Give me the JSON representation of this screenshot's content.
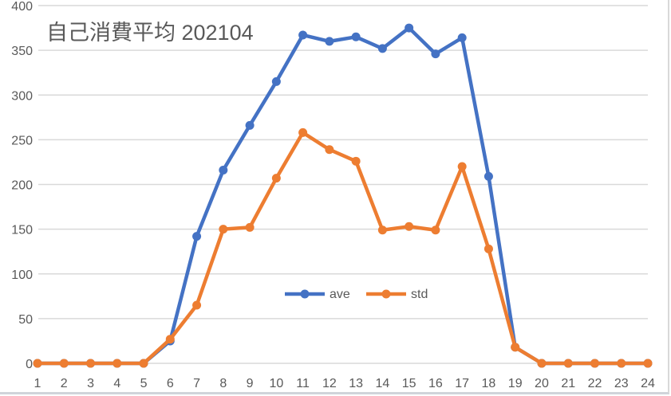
{
  "chart_data": {
    "type": "line",
    "title": "自己消費平均  202104",
    "xlabel": "",
    "ylabel": "",
    "x": [
      1,
      2,
      3,
      4,
      5,
      6,
      7,
      8,
      9,
      10,
      11,
      12,
      13,
      14,
      15,
      16,
      17,
      18,
      19,
      20,
      21,
      22,
      23,
      24
    ],
    "categories": [
      "1",
      "2",
      "3",
      "4",
      "5",
      "6",
      "7",
      "8",
      "9",
      "10",
      "11",
      "12",
      "13",
      "14",
      "15",
      "16",
      "17",
      "18",
      "19",
      "20",
      "21",
      "22",
      "23",
      "24"
    ],
    "series": [
      {
        "name": "ave",
        "color": "#4472c4",
        "values": [
          0,
          0,
          0,
          0,
          0,
          25,
          142,
          216,
          266,
          315,
          367,
          360,
          365,
          352,
          375,
          346,
          364,
          209,
          18,
          0,
          0,
          0,
          0,
          0
        ]
      },
      {
        "name": "std",
        "color": "#ed7d31",
        "values": [
          0,
          0,
          0,
          0,
          0,
          27,
          65,
          150,
          152,
          207,
          258,
          239,
          226,
          149,
          153,
          149,
          220,
          128,
          18,
          0,
          0,
          0,
          0,
          0
        ]
      }
    ],
    "ylim": [
      0,
      400
    ],
    "yticks": [
      0,
      50,
      100,
      150,
      200,
      250,
      300,
      350,
      400
    ],
    "grid": true,
    "legend_position": "inside-center-bottom"
  },
  "legend": {
    "items": [
      {
        "label": "ave",
        "color": "#4472c4"
      },
      {
        "label": "std",
        "color": "#ed7d31"
      }
    ]
  }
}
